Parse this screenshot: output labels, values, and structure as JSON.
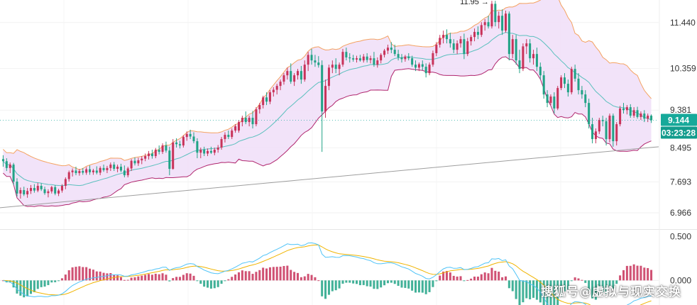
{
  "chart_data": {
    "type": "candlestick",
    "price_axis": {
      "ticks": [
        "11.440",
        "10.359",
        "9.381",
        "8.495",
        "7.693",
        "6.966"
      ],
      "ylim": [
        6.6,
        11.97
      ]
    },
    "indicator_axis": {
      "ticks": [
        "0.500",
        "0.000"
      ],
      "ylim": [
        -0.28,
        0.56
      ]
    },
    "current_price": "9.144",
    "countdown": "03:23:28",
    "high_marker": "11.95 →",
    "candles": [
      [
        8.23,
        8.32,
        8.05,
        8.18
      ],
      [
        8.18,
        8.25,
        7.95,
        8.02
      ],
      [
        8.02,
        8.15,
        7.9,
        8.1
      ],
      [
        8.1,
        8.14,
        7.62,
        7.7
      ],
      [
        7.7,
        7.78,
        7.35,
        7.42
      ],
      [
        7.42,
        7.56,
        7.3,
        7.5
      ],
      [
        7.5,
        7.58,
        7.36,
        7.4
      ],
      [
        7.4,
        7.55,
        7.32,
        7.48
      ],
      [
        7.48,
        7.62,
        7.41,
        7.55
      ],
      [
        7.55,
        7.64,
        7.44,
        7.49
      ],
      [
        7.49,
        7.67,
        7.45,
        7.6
      ],
      [
        7.6,
        7.66,
        7.48,
        7.52
      ],
      [
        7.52,
        7.58,
        7.39,
        7.43
      ],
      [
        7.43,
        7.52,
        7.33,
        7.47
      ],
      [
        7.47,
        7.6,
        7.42,
        7.57
      ],
      [
        7.57,
        7.62,
        7.38,
        7.42
      ],
      [
        7.42,
        7.53,
        7.36,
        7.49
      ],
      [
        7.49,
        7.64,
        7.44,
        7.6
      ],
      [
        7.6,
        7.8,
        7.52,
        7.76
      ],
      [
        7.76,
        7.96,
        7.7,
        7.92
      ],
      [
        7.92,
        8.01,
        7.82,
        7.96
      ],
      [
        7.96,
        8.05,
        7.85,
        7.9
      ],
      [
        7.9,
        8.0,
        7.84,
        7.95
      ],
      [
        7.95,
        8.02,
        7.86,
        7.91
      ],
      [
        7.91,
        8.04,
        7.86,
        7.99
      ],
      [
        7.99,
        8.08,
        7.86,
        7.92
      ],
      [
        7.92,
        8.0,
        7.86,
        7.96
      ],
      [
        7.96,
        8.06,
        7.87,
        7.91
      ],
      [
        7.91,
        8.06,
        7.85,
        8.02
      ],
      [
        8.02,
        8.1,
        7.93,
        7.97
      ],
      [
        7.97,
        8.07,
        7.9,
        8.02
      ],
      [
        8.02,
        8.15,
        7.95,
        8.1
      ],
      [
        8.1,
        8.16,
        7.95,
        8.0
      ],
      [
        8.0,
        8.1,
        7.92,
        8.05
      ],
      [
        8.05,
        8.12,
        7.92,
        7.96
      ],
      [
        7.96,
        8.08,
        7.8,
        7.85
      ],
      [
        7.85,
        8.05,
        7.8,
        8.01
      ],
      [
        8.01,
        8.23,
        7.95,
        8.19
      ],
      [
        8.19,
        8.27,
        8.08,
        8.13
      ],
      [
        8.13,
        8.26,
        8.07,
        8.2
      ],
      [
        8.2,
        8.3,
        8.11,
        8.24
      ],
      [
        8.24,
        8.36,
        8.18,
        8.3
      ],
      [
        8.3,
        8.42,
        8.22,
        8.36
      ],
      [
        8.36,
        8.45,
        8.24,
        8.3
      ],
      [
        8.3,
        8.49,
        8.25,
        8.45
      ],
      [
        8.45,
        8.55,
        8.34,
        8.4
      ],
      [
        8.4,
        8.6,
        8.35,
        8.55
      ],
      [
        8.55,
        8.64,
        8.38,
        8.43
      ],
      [
        8.43,
        8.52,
        7.85,
        8.0
      ],
      [
        8.0,
        8.7,
        7.98,
        8.62
      ],
      [
        8.62,
        8.72,
        8.5,
        8.58
      ],
      [
        8.58,
        8.66,
        8.48,
        8.55
      ],
      [
        8.55,
        8.79,
        8.5,
        8.75
      ],
      [
        8.75,
        8.88,
        8.66,
        8.82
      ],
      [
        8.82,
        8.92,
        8.7,
        8.76
      ],
      [
        8.76,
        8.86,
        8.6,
        8.65
      ],
      [
        8.65,
        8.72,
        8.25,
        8.38
      ],
      [
        8.38,
        8.5,
        8.25,
        8.45
      ],
      [
        8.45,
        8.52,
        8.3,
        8.36
      ],
      [
        8.36,
        8.48,
        8.3,
        8.42
      ],
      [
        8.42,
        8.52,
        8.35,
        8.38
      ],
      [
        8.38,
        8.5,
        8.32,
        8.45
      ],
      [
        8.45,
        8.56,
        8.38,
        8.5
      ],
      [
        8.5,
        8.75,
        8.45,
        8.7
      ],
      [
        8.7,
        8.86,
        8.62,
        8.8
      ],
      [
        8.8,
        8.9,
        8.7,
        8.75
      ],
      [
        8.75,
        8.95,
        8.7,
        8.9
      ],
      [
        8.9,
        9.05,
        8.85,
        9.0
      ],
      [
        8.9,
        9.15,
        8.85,
        9.1
      ],
      [
        9.1,
        9.25,
        9.0,
        9.2
      ],
      [
        9.2,
        9.35,
        9.05,
        9.1
      ],
      [
        9.1,
        9.25,
        9.0,
        9.2
      ],
      [
        9.2,
        9.36,
        8.95,
        9.05
      ],
      [
        9.05,
        9.45,
        9.0,
        9.4
      ],
      [
        9.4,
        9.55,
        9.3,
        9.5
      ],
      [
        9.5,
        9.72,
        9.42,
        9.68
      ],
      [
        9.68,
        9.8,
        9.5,
        9.58
      ],
      [
        9.58,
        9.85,
        9.52,
        9.8
      ],
      [
        9.8,
        9.92,
        9.7,
        9.86
      ],
      [
        9.86,
        10.0,
        9.75,
        9.95
      ],
      [
        9.95,
        10.1,
        9.85,
        10.05
      ],
      [
        10.05,
        10.25,
        9.98,
        10.2
      ],
      [
        10.2,
        10.38,
        10.1,
        10.3
      ],
      [
        10.3,
        10.48,
        10.0,
        10.05
      ],
      [
        10.05,
        10.25,
        9.95,
        10.2
      ],
      [
        10.2,
        10.35,
        10.1,
        10.3
      ],
      [
        10.3,
        10.42,
        10.0,
        10.1
      ],
      [
        10.1,
        10.55,
        10.05,
        10.45
      ],
      [
        10.45,
        10.75,
        10.3,
        10.68
      ],
      [
        10.68,
        10.82,
        10.45,
        10.55
      ],
      [
        10.55,
        10.68,
        10.4,
        10.5
      ],
      [
        10.5,
        10.65,
        10.38,
        10.44
      ],
      [
        10.44,
        10.55,
        8.4,
        9.35
      ],
      [
        9.35,
        10.1,
        9.2,
        9.95
      ],
      [
        9.95,
        10.45,
        9.85,
        10.38
      ],
      [
        10.38,
        10.55,
        10.25,
        10.45
      ],
      [
        10.45,
        10.6,
        10.25,
        10.35
      ],
      [
        10.35,
        10.5,
        10.2,
        10.45
      ],
      [
        10.45,
        10.82,
        10.4,
        10.75
      ],
      [
        10.75,
        10.85,
        10.55,
        10.62
      ],
      [
        10.62,
        10.72,
        10.5,
        10.6
      ],
      [
        10.6,
        10.68,
        10.52,
        10.57
      ],
      [
        10.57,
        10.66,
        10.5,
        10.6
      ],
      [
        10.6,
        10.68,
        10.52,
        10.55
      ],
      [
        10.55,
        10.7,
        10.5,
        10.64
      ],
      [
        10.64,
        10.72,
        10.5,
        10.56
      ],
      [
        10.56,
        10.66,
        10.48,
        10.6
      ],
      [
        10.6,
        10.75,
        10.4,
        10.45
      ],
      [
        10.45,
        10.62,
        10.38,
        10.55
      ],
      [
        10.55,
        10.72,
        10.48,
        10.68
      ],
      [
        10.68,
        10.82,
        10.62,
        10.78
      ],
      [
        10.78,
        10.92,
        10.7,
        10.85
      ],
      [
        10.85,
        10.98,
        10.72,
        10.8
      ],
      [
        10.8,
        10.92,
        10.65,
        10.7
      ],
      [
        10.7,
        10.8,
        10.55,
        10.62
      ],
      [
        10.62,
        10.7,
        10.5,
        10.58
      ],
      [
        10.58,
        10.68,
        10.52,
        10.64
      ],
      [
        10.64,
        10.72,
        10.55,
        10.6
      ],
      [
        10.6,
        10.66,
        10.4,
        10.45
      ],
      [
        10.45,
        10.55,
        10.3,
        10.38
      ],
      [
        10.38,
        10.5,
        10.3,
        10.46
      ],
      [
        10.46,
        10.55,
        10.32,
        10.4
      ],
      [
        10.4,
        10.48,
        10.15,
        10.25
      ],
      [
        10.25,
        10.5,
        10.2,
        10.45
      ],
      [
        10.45,
        10.78,
        10.4,
        10.72
      ],
      [
        10.72,
        10.98,
        10.65,
        10.92
      ],
      [
        10.92,
        11.15,
        10.85,
        11.08
      ],
      [
        11.08,
        11.25,
        10.95,
        11.15
      ],
      [
        11.15,
        11.28,
        10.95,
        11.05
      ],
      [
        11.05,
        11.2,
        10.85,
        10.95
      ],
      [
        10.95,
        11.05,
        10.72,
        10.8
      ],
      [
        10.8,
        11.02,
        10.7,
        10.95
      ],
      [
        10.95,
        11.12,
        10.85,
        11.05
      ],
      [
        11.05,
        11.18,
        10.58,
        10.7
      ],
      [
        10.7,
        11.08,
        10.65,
        11.0
      ],
      [
        11.0,
        11.15,
        10.9,
        11.1
      ],
      [
        11.1,
        11.3,
        11.0,
        11.22
      ],
      [
        11.22,
        11.35,
        11.05,
        11.15
      ],
      [
        11.15,
        11.45,
        11.1,
        11.38
      ],
      [
        11.38,
        11.52,
        11.25,
        11.45
      ],
      [
        11.45,
        11.6,
        11.3,
        11.35
      ],
      [
        11.35,
        11.95,
        11.3,
        11.88
      ],
      [
        11.88,
        11.95,
        11.35,
        11.45
      ],
      [
        11.45,
        11.7,
        11.3,
        11.6
      ],
      [
        11.6,
        11.75,
        11.15,
        11.25
      ],
      [
        11.25,
        11.72,
        11.2,
        11.65
      ],
      [
        11.65,
        11.7,
        10.55,
        10.7
      ],
      [
        10.7,
        11.15,
        10.6,
        11.05
      ],
      [
        11.05,
        11.15,
        10.45,
        10.55
      ],
      [
        10.55,
        10.8,
        10.25,
        10.35
      ],
      [
        10.35,
        10.95,
        10.3,
        10.88
      ],
      [
        10.88,
        11.05,
        10.7,
        10.95
      ],
      [
        10.95,
        11.05,
        10.5,
        10.6
      ],
      [
        10.6,
        10.8,
        10.45,
        10.7
      ],
      [
        10.7,
        10.85,
        10.3,
        10.4
      ],
      [
        10.4,
        10.5,
        10.1,
        10.2
      ],
      [
        10.2,
        10.3,
        9.65,
        9.75
      ],
      [
        9.75,
        9.85,
        9.45,
        9.55
      ],
      [
        9.55,
        9.75,
        9.5,
        9.7
      ],
      [
        9.7,
        9.8,
        9.3,
        9.42
      ],
      [
        9.42,
        9.95,
        9.38,
        9.9
      ],
      [
        9.9,
        10.2,
        9.85,
        10.15
      ],
      [
        10.15,
        10.25,
        9.9,
        10.0
      ],
      [
        10.0,
        10.1,
        9.7,
        9.8
      ],
      [
        9.8,
        10.4,
        9.75,
        10.35
      ],
      [
        10.35,
        10.45,
        10.05,
        10.12
      ],
      [
        10.12,
        10.25,
        9.75,
        9.85
      ],
      [
        9.85,
        9.95,
        9.65,
        9.75
      ],
      [
        9.75,
        9.85,
        9.45,
        9.55
      ],
      [
        9.55,
        9.65,
        8.95,
        9.05
      ],
      [
        9.05,
        9.2,
        8.6,
        8.7
      ],
      [
        8.7,
        8.95,
        8.6,
        8.88
      ],
      [
        8.88,
        9.2,
        8.82,
        9.15
      ],
      [
        9.15,
        9.25,
        9.0,
        9.12
      ],
      [
        9.12,
        9.2,
        8.55,
        8.7
      ],
      [
        8.7,
        9.3,
        8.62,
        9.25
      ],
      [
        9.25,
        9.3,
        8.52,
        8.65
      ],
      [
        8.65,
        9.1,
        8.55,
        9.05
      ],
      [
        9.05,
        9.48,
        9.0,
        9.42
      ],
      [
        9.42,
        9.55,
        9.3,
        9.38
      ],
      [
        9.38,
        9.5,
        9.28,
        9.45
      ],
      [
        9.45,
        9.52,
        9.2,
        9.25
      ],
      [
        9.25,
        9.45,
        9.2,
        9.38
      ],
      [
        9.38,
        9.46,
        9.18,
        9.22
      ],
      [
        9.22,
        9.35,
        9.15,
        9.3
      ],
      [
        9.3,
        9.38,
        9.1,
        9.18
      ],
      [
        9.18,
        9.3,
        9.1,
        9.25
      ],
      [
        9.25,
        9.28,
        9.08,
        9.144
      ]
    ],
    "ema_colors": {
      "up": "#c2185b",
      "down": "#26a69a"
    },
    "colors": {
      "up": "#c8335a",
      "down": "#21a386",
      "band_upper": "#f4a261",
      "band_lower": "#b0266e",
      "band_fill": "#f1e0f8",
      "mid_line": "#5bc0be",
      "trendline": "#9e9e9e",
      "macd_line": "#4fc3f7",
      "signal_line": "#f0b400",
      "badge_price": "#16a99a",
      "badge_time": "#139c8d"
    },
    "trendline": [
      [
        0,
        7.1
      ],
      [
        197,
        8.58
      ]
    ],
    "bollinger_period": 20,
    "bollinger_k": 2
  },
  "watermark": "搜狐号@虚拟与现实交换"
}
